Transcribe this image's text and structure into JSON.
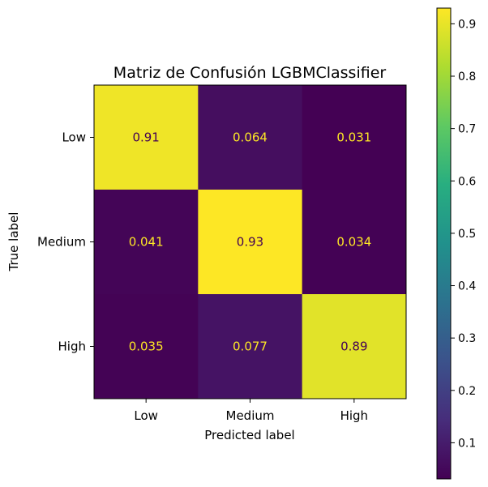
{
  "chart_data": {
    "type": "heatmap",
    "title": "Matriz de Confusión LGBMClassifier",
    "xlabel": "Predicted label",
    "ylabel": "True label",
    "x_categories": [
      "Low",
      "Medium",
      "High"
    ],
    "y_categories": [
      "Low",
      "Medium",
      "High"
    ],
    "values": [
      [
        0.91,
        0.064,
        0.031
      ],
      [
        0.041,
        0.93,
        0.034
      ],
      [
        0.035,
        0.077,
        0.89
      ]
    ],
    "value_labels": [
      [
        "0.91",
        "0.064",
        "0.031"
      ],
      [
        "0.041",
        "0.93",
        "0.034"
      ],
      [
        "0.035",
        "0.077",
        "0.89"
      ]
    ],
    "colormap": "viridis",
    "colorbar": {
      "range": [
        0.031,
        0.93
      ],
      "ticks": [
        0.1,
        0.2,
        0.3,
        0.4,
        0.5,
        0.6,
        0.7,
        0.8,
        0.9
      ],
      "tick_labels": [
        "0.1",
        "0.2",
        "0.3",
        "0.4",
        "0.5",
        "0.6",
        "0.7",
        "0.8",
        "0.9"
      ]
    },
    "colors": {
      "low_cell_text": "#fde725",
      "high_cell_text": "#440154"
    }
  }
}
